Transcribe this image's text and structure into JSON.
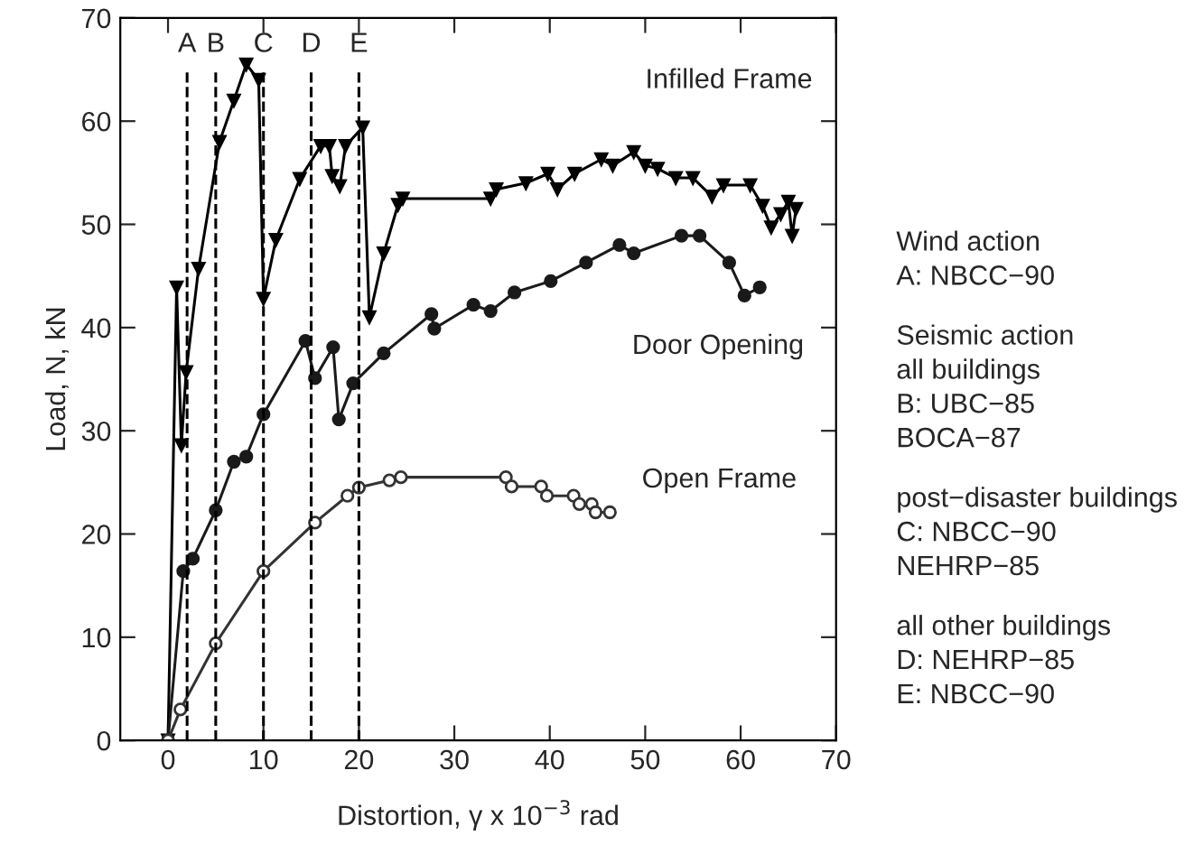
{
  "chart_data": {
    "type": "line",
    "xlabel": "Distortion, γ x 10$^{−3}$ rad",
    "ylabel": "Load, N, kN",
    "xlim": [
      -5,
      70
    ],
    "xticks": [
      0,
      10,
      20,
      30,
      40,
      50,
      60,
      70
    ],
    "ylim": [
      0,
      70
    ],
    "yticks": [
      0,
      10,
      20,
      30,
      40,
      50,
      60,
      70
    ],
    "grid": false,
    "legend": false,
    "line_style": "solid",
    "series": [
      {
        "name": "Infilled Frame",
        "color": "#000000",
        "marker": "triangle",
        "x": [
          0,
          0.9,
          1.4,
          1.9,
          3.2,
          5.4,
          6.9,
          8.2,
          9.5,
          10,
          11.3,
          13.8,
          16,
          16.9,
          17.2,
          18,
          18.6,
          20.4,
          21.1,
          22.6,
          24.1,
          24.6,
          33.8,
          34.4,
          37.5,
          39.8,
          40.8,
          42.6,
          45.4,
          46.6,
          48.8,
          50,
          51.3,
          53.2,
          55,
          57,
          58.2,
          61,
          62.3,
          63.2,
          64.2,
          65,
          65.4,
          65.8
        ],
        "values": [
          0,
          43.9,
          28.6,
          35.7,
          45.7,
          58,
          62,
          65.5,
          64,
          42.8,
          48.5,
          54.4,
          57.6,
          57.6,
          54.7,
          53.7,
          57.6,
          59.4,
          41,
          47.2,
          51.9,
          52.5,
          52.5,
          53.4,
          54,
          54.9,
          53.4,
          54.9,
          56.3,
          55.7,
          57,
          55.7,
          55.4,
          54.5,
          54.5,
          52.7,
          53.8,
          53.8,
          51.8,
          49.7,
          51,
          52.2,
          48.9,
          51.5
        ]
      },
      {
        "name": "Door Opening",
        "color": "#1a1a1a",
        "marker": "circle",
        "x": [
          0,
          1.6,
          2.6,
          5,
          6.9,
          8.2,
          10,
          14.4,
          15.4,
          17.3,
          17.9,
          19.4,
          22.6,
          27.6,
          27.9,
          32,
          33.8,
          36.3,
          40.1,
          43.8,
          47.3,
          48.8,
          53.8,
          55.7,
          58.8,
          60.4,
          62
        ],
        "values": [
          0,
          16.4,
          17.6,
          22.3,
          27,
          27.5,
          31.6,
          38.7,
          35.1,
          38.1,
          31.1,
          34.6,
          37.5,
          41.3,
          39.9,
          42.2,
          41.6,
          43.4,
          44.5,
          46.3,
          48,
          47.2,
          48.9,
          48.9,
          46.3,
          43.1,
          43.9
        ]
      },
      {
        "name": "Open Frame",
        "color": "#333333",
        "marker": "circle",
        "x": [
          0,
          1.3,
          5,
          10,
          15.4,
          18.8,
          20,
          23.2,
          24.4,
          35.4,
          36,
          39.1,
          39.7,
          42.5,
          43.1,
          44.4,
          44.8,
          46.3
        ],
        "values": [
          0,
          3,
          9.4,
          16.4,
          21.1,
          23.7,
          24.5,
          25.2,
          25.5,
          25.5,
          24.6,
          24.6,
          23.7,
          23.7,
          22.9,
          22.9,
          22.1,
          22.1
        ]
      }
    ],
    "ref_lines": [
      {
        "axis": "x",
        "value": 2,
        "label": "A",
        "line_style": "dashed",
        "color": "#000000"
      },
      {
        "axis": "x",
        "value": 5,
        "label": "B",
        "line_style": "dashed",
        "color": "#000000"
      },
      {
        "axis": "x",
        "value": 10,
        "label": "C",
        "line_style": "dashed",
        "color": "#000000"
      },
      {
        "axis": "x",
        "value": 15,
        "label": "D",
        "line_style": "dashed",
        "color": "#000000"
      },
      {
        "axis": "x",
        "value": 20,
        "label": "E",
        "line_style": "dashed",
        "color": "#000000"
      }
    ],
    "annotations": [
      "Wind action",
      "A: NBCC−90",
      "Seismic action",
      "all buildings",
      "B: UBC−85",
      "BOCA−87",
      "post−disaster buildings",
      "C: NBCC−90",
      "NEHRP−85",
      "all other buildings",
      "D: NEHRP−85",
      "E: NBCC−90"
    ]
  }
}
